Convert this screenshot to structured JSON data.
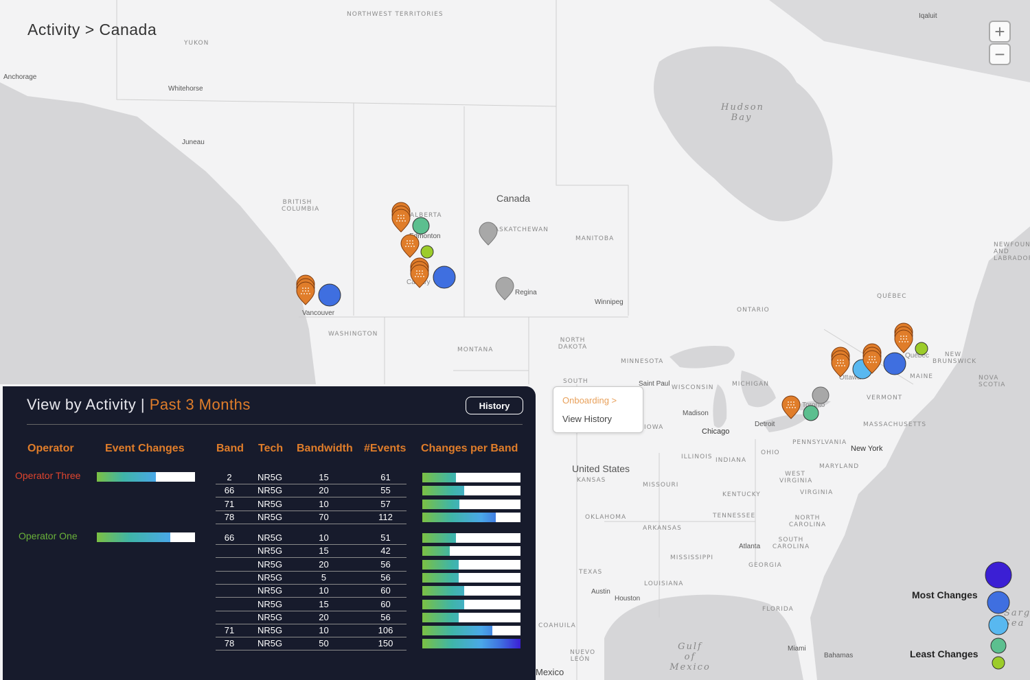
{
  "breadcrumb": "Activity > Canada",
  "zoom": {
    "in_symbol": "+",
    "out_symbol": "−"
  },
  "map_labels": {
    "regions": [
      "NORTHWEST TERRITORIES",
      "YUKON",
      "BRITISH COLUMBIA",
      "SASKATCHEWAN",
      "MANITOBA",
      "ONTARIO",
      "QUÉBEC",
      "NEWFOUNDLAND AND LABRADOR",
      "NEW BRUNSWICK",
      "NOVA SCOTIA",
      "WASHINGTON",
      "MONTANA",
      "NORTH DAKOTA",
      "SOUTH",
      "MINNESOTA",
      "WISCONSIN",
      "MICHIGAN",
      "IOWA",
      "ILLINOIS",
      "INDIANA",
      "OHIO",
      "PENNSYLVANIA",
      "VERMONT",
      "MAINE",
      "MASSACHUSETTS",
      "KANSAS",
      "MISSOURI",
      "KENTUCKY",
      "WEST VIRGINIA",
      "VIRGINIA",
      "MARYLAND",
      "TENNESSEE",
      "NORTH CAROLINA",
      "SOUTH CAROLINA",
      "OKLAHOMA",
      "ARKANSAS",
      "MISSISSIPPI",
      "GEORGIA",
      "TEXAS",
      "LOUISIANA",
      "FLORIDA",
      "COAHUILA",
      "NUEVO LEÓN",
      "ALBERTA"
    ],
    "cities": [
      "Anchorage",
      "Whitehorse",
      "Juneau",
      "Iqaluit",
      "Edmonton",
      "Regina",
      "Winnipeg",
      "Vancouver",
      "Calgary",
      "Saint Paul",
      "Madison",
      "Chicago",
      "Detroit",
      "Toronto",
      "Ottawa",
      "Québec",
      "New York",
      "Atlanta",
      "Austin",
      "Houston",
      "Miami",
      "Bahamas"
    ],
    "countries": [
      "Canada",
      "United States",
      "Mexico"
    ],
    "water": [
      "Hudson Bay",
      "Gulf of Mexico",
      "Sargasso Sea"
    ]
  },
  "panel": {
    "title": "View by Activity",
    "separator": "|",
    "period": "Past 3 Months",
    "history_button": "History",
    "headers": {
      "operator": "Operator",
      "event_changes": "Event Changes",
      "band": "Band",
      "tech": "Tech",
      "bandwidth": "Bandwidth",
      "events": "#Events",
      "changes_per_band": "Changes per Band"
    },
    "operators": [
      {
        "name": "Operator Three",
        "color": "#e0452e",
        "event_changes_fill": 0.6,
        "rows": [
          {
            "band": "2",
            "tech": "NR5G",
            "bandwidth": "15",
            "events": "61",
            "fill": 0.34
          },
          {
            "band": "66",
            "tech": "NR5G",
            "bandwidth": "20",
            "events": "55",
            "fill": 0.43
          },
          {
            "band": "71",
            "tech": "NR5G",
            "bandwidth": "10",
            "events": "57",
            "fill": 0.38
          },
          {
            "band": "78",
            "tech": "NR5G",
            "bandwidth": "70",
            "events": "112",
            "fill": 0.75
          }
        ]
      },
      {
        "name": "Operator One",
        "color": "#6ab23a",
        "event_changes_fill": 0.75,
        "rows": [
          {
            "band": "66",
            "tech": "NR5G",
            "bandwidth": "10",
            "events": "51",
            "fill": 0.34
          },
          {
            "band": "",
            "tech": "NR5G",
            "bandwidth": "15",
            "events": "42",
            "fill": 0.28
          },
          {
            "band": "",
            "tech": "NR5G",
            "bandwidth": "20",
            "events": "56",
            "fill": 0.37
          },
          {
            "band": "",
            "tech": "NR5G",
            "bandwidth": "5",
            "events": "56",
            "fill": 0.37
          },
          {
            "band": "",
            "tech": "NR5G",
            "bandwidth": "10",
            "events": "60",
            "fill": 0.43
          },
          {
            "band": "",
            "tech": "NR5G",
            "bandwidth": "15",
            "events": "60",
            "fill": 0.43
          },
          {
            "band": "",
            "tech": "NR5G",
            "bandwidth": "20",
            "events": "56",
            "fill": 0.37
          },
          {
            "band": "71",
            "tech": "NR5G",
            "bandwidth": "10",
            "events": "106",
            "fill": 0.71
          },
          {
            "band": "78",
            "tech": "NR5G",
            "bandwidth": "50",
            "events": "150",
            "fill": 1.0
          }
        ]
      }
    ]
  },
  "popup": {
    "onboarding": "Onboarding >",
    "view_history": "View History"
  },
  "legend": {
    "most": "Most Changes",
    "least": "Least Changes",
    "colors": [
      "#3b1fd4",
      "#3f6fe0",
      "#58b8f0",
      "#5cbf8f",
      "#9ccc2a"
    ]
  },
  "colors": {
    "panel_bg": "#171b2c",
    "accent": "#e07d2a",
    "marker_orange": "#e07d2a",
    "marker_gray": "#a8a8a8"
  }
}
